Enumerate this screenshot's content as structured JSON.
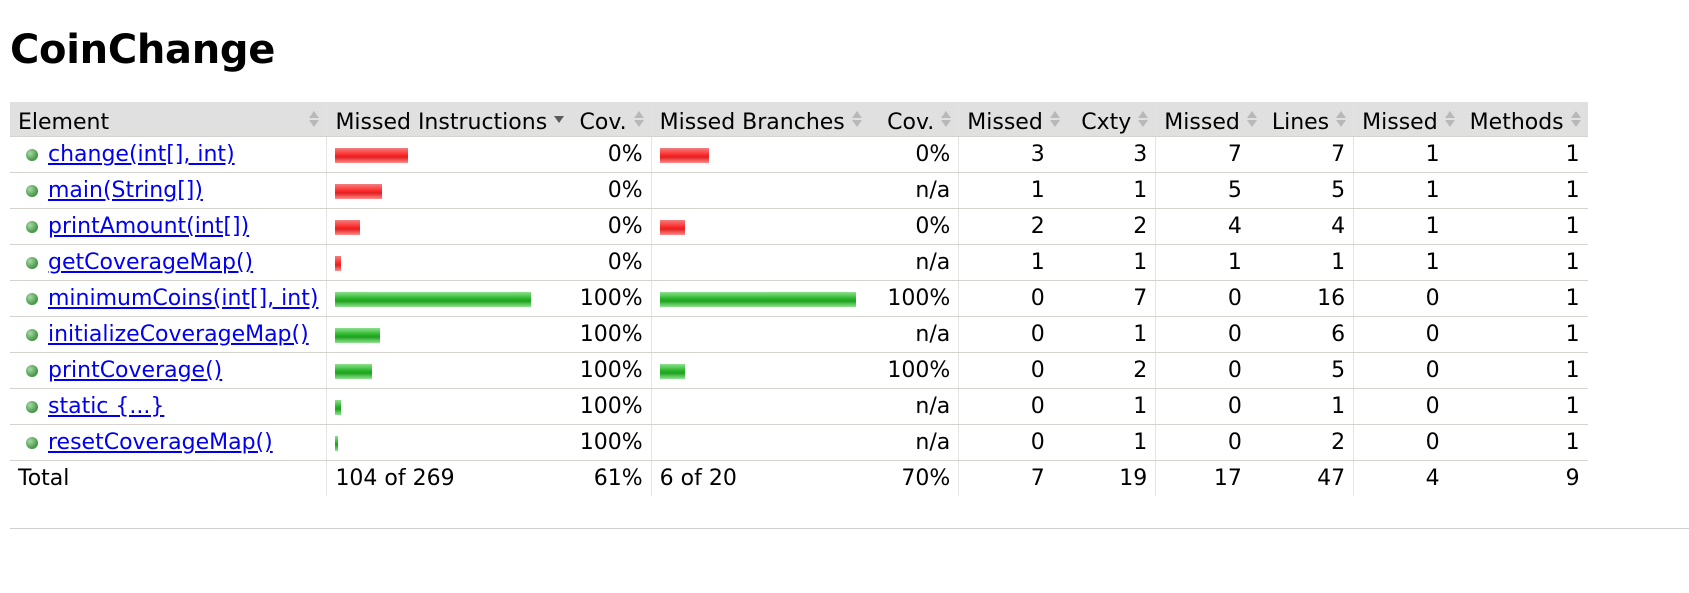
{
  "title": "CoinChange",
  "columns": {
    "element": "Element",
    "missed_instructions": "Missed Instructions",
    "cov_instructions": "Cov.",
    "missed_branches": "Missed Branches",
    "cov_branches": "Cov.",
    "missed_cxty": "Missed",
    "cxty": "Cxty",
    "missed_lines": "Missed",
    "lines": "Lines",
    "missed_methods": "Missed",
    "methods": "Methods"
  },
  "rows": [
    {
      "element": "change(int[], int)",
      "instr_missed_frac": 0.37,
      "instr_covered_frac": 0,
      "instr_cov": "0%",
      "br_missed_frac": 0.25,
      "br_covered_frac": 0,
      "br_cov": "0%",
      "missed_cxty": "3",
      "cxty": "3",
      "missed_lines": "7",
      "lines": "7",
      "missed_methods": "1",
      "methods": "1"
    },
    {
      "element": "main(String[])",
      "instr_missed_frac": 0.24,
      "instr_covered_frac": 0,
      "instr_cov": "0%",
      "br_missed_frac": 0,
      "br_covered_frac": 0,
      "br_cov": "n/a",
      "missed_cxty": "1",
      "cxty": "1",
      "missed_lines": "5",
      "lines": "5",
      "missed_methods": "1",
      "methods": "1"
    },
    {
      "element": "printAmount(int[])",
      "instr_missed_frac": 0.13,
      "instr_covered_frac": 0,
      "instr_cov": "0%",
      "br_missed_frac": 0.125,
      "br_covered_frac": 0,
      "br_cov": "0%",
      "missed_cxty": "2",
      "cxty": "2",
      "missed_lines": "4",
      "lines": "4",
      "missed_methods": "1",
      "methods": "1"
    },
    {
      "element": "getCoverageMap()",
      "instr_missed_frac": 0.03,
      "instr_covered_frac": 0,
      "instr_cov": "0%",
      "br_missed_frac": 0,
      "br_covered_frac": 0,
      "br_cov": "n/a",
      "missed_cxty": "1",
      "cxty": "1",
      "missed_lines": "1",
      "lines": "1",
      "missed_methods": "1",
      "methods": "1"
    },
    {
      "element": "minimumCoins(int[], int)",
      "instr_missed_frac": 0,
      "instr_covered_frac": 1.0,
      "instr_cov": "100%",
      "br_missed_frac": 0,
      "br_covered_frac": 1.0,
      "br_cov": "100%",
      "missed_cxty": "0",
      "cxty": "7",
      "missed_lines": "0",
      "lines": "16",
      "missed_methods": "0",
      "methods": "1"
    },
    {
      "element": "initializeCoverageMap()",
      "instr_missed_frac": 0,
      "instr_covered_frac": 0.23,
      "instr_cov": "100%",
      "br_missed_frac": 0,
      "br_covered_frac": 0,
      "br_cov": "n/a",
      "missed_cxty": "0",
      "cxty": "1",
      "missed_lines": "0",
      "lines": "6",
      "missed_methods": "0",
      "methods": "1"
    },
    {
      "element": "printCoverage()",
      "instr_missed_frac": 0,
      "instr_covered_frac": 0.19,
      "instr_cov": "100%",
      "br_missed_frac": 0,
      "br_covered_frac": 0.125,
      "br_cov": "100%",
      "missed_cxty": "0",
      "cxty": "2",
      "missed_lines": "0",
      "lines": "5",
      "missed_methods": "0",
      "methods": "1"
    },
    {
      "element": "static {...}",
      "instr_missed_frac": 0,
      "instr_covered_frac": 0.03,
      "instr_cov": "100%",
      "br_missed_frac": 0,
      "br_covered_frac": 0,
      "br_cov": "n/a",
      "missed_cxty": "0",
      "cxty": "1",
      "missed_lines": "0",
      "lines": "1",
      "missed_methods": "0",
      "methods": "1"
    },
    {
      "element": "resetCoverageMap()",
      "instr_missed_frac": 0,
      "instr_covered_frac": 0.01,
      "instr_cov": "100%",
      "br_missed_frac": 0,
      "br_covered_frac": 0,
      "br_cov": "n/a",
      "missed_cxty": "0",
      "cxty": "1",
      "missed_lines": "0",
      "lines": "2",
      "missed_methods": "0",
      "methods": "1"
    }
  ],
  "total": {
    "label": "Total",
    "instructions": "104 of 269",
    "instr_cov": "61%",
    "branches": "6 of 20",
    "br_cov": "70%",
    "missed_cxty": "7",
    "cxty": "19",
    "missed_lines": "17",
    "lines": "47",
    "missed_methods": "4",
    "methods": "9"
  },
  "colors": {
    "missed_bar": "#ff2b2b",
    "covered_bar": "#27b427",
    "link": "#0000ee",
    "header_bg": "#e0e0e0"
  }
}
